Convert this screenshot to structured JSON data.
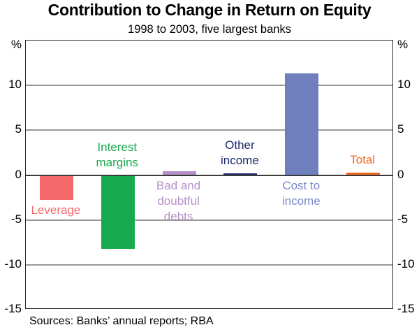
{
  "chart_data": {
    "type": "bar",
    "title": "Contribution to Change in Return on Equity",
    "subtitle": "1998 to 2003, five largest banks",
    "unit": "%",
    "ylabel": "%",
    "ylim": [
      -15,
      15
    ],
    "yticks": [
      10,
      5,
      0,
      -5,
      -10,
      -15
    ],
    "gridline_values": [
      10,
      5,
      -5,
      -10
    ],
    "zero_line": 0,
    "grid": true,
    "legend_position": "none",
    "categories": [
      "Leverage",
      "Interest margins",
      "Bad and doubtful debts",
      "Other income",
      "Cost to income",
      "Total"
    ],
    "values": [
      -2.8,
      -8.2,
      0.4,
      0.2,
      11.3,
      0.3
    ],
    "bars": [
      {
        "label": "Leverage",
        "value": -2.8,
        "color": "#f5696b",
        "label_lines": [
          "Leverage"
        ],
        "label_side": "below",
        "pattern": "dots"
      },
      {
        "label": "Interest margins",
        "value": -8.2,
        "color": "#17a94e",
        "label_lines": [
          "Interest",
          "margins"
        ],
        "label_side": "above",
        "pattern": "dots"
      },
      {
        "label": "Bad and doubtful debts",
        "value": 0.4,
        "color": "#b48fc7",
        "label_lines": [
          "Bad and",
          "doubtful",
          "debts"
        ],
        "label_side": "below",
        "pattern": "dots"
      },
      {
        "label": "Other income",
        "value": 0.2,
        "color": "#1a2a6c",
        "label_lines": [
          "Other",
          "income"
        ],
        "label_side": "above",
        "pattern": "solid"
      },
      {
        "label": "Cost to income",
        "value": 11.3,
        "color": "#6f7fbe",
        "label_lines": [
          "Cost to",
          "income"
        ],
        "label_side": "below",
        "pattern": "solid",
        "label_color": "#7b8ac9"
      },
      {
        "label": "Total",
        "value": 0.3,
        "color": "#f2681f",
        "label_lines": [
          "Total"
        ],
        "label_side": "above",
        "pattern": "dots"
      }
    ],
    "source": "Sources: Banks’ annual reports; RBA"
  },
  "colors": {
    "grid": "#999999",
    "zero_line": "#3a3a3a",
    "frame": "#2b2b2b",
    "text": "#000000"
  }
}
